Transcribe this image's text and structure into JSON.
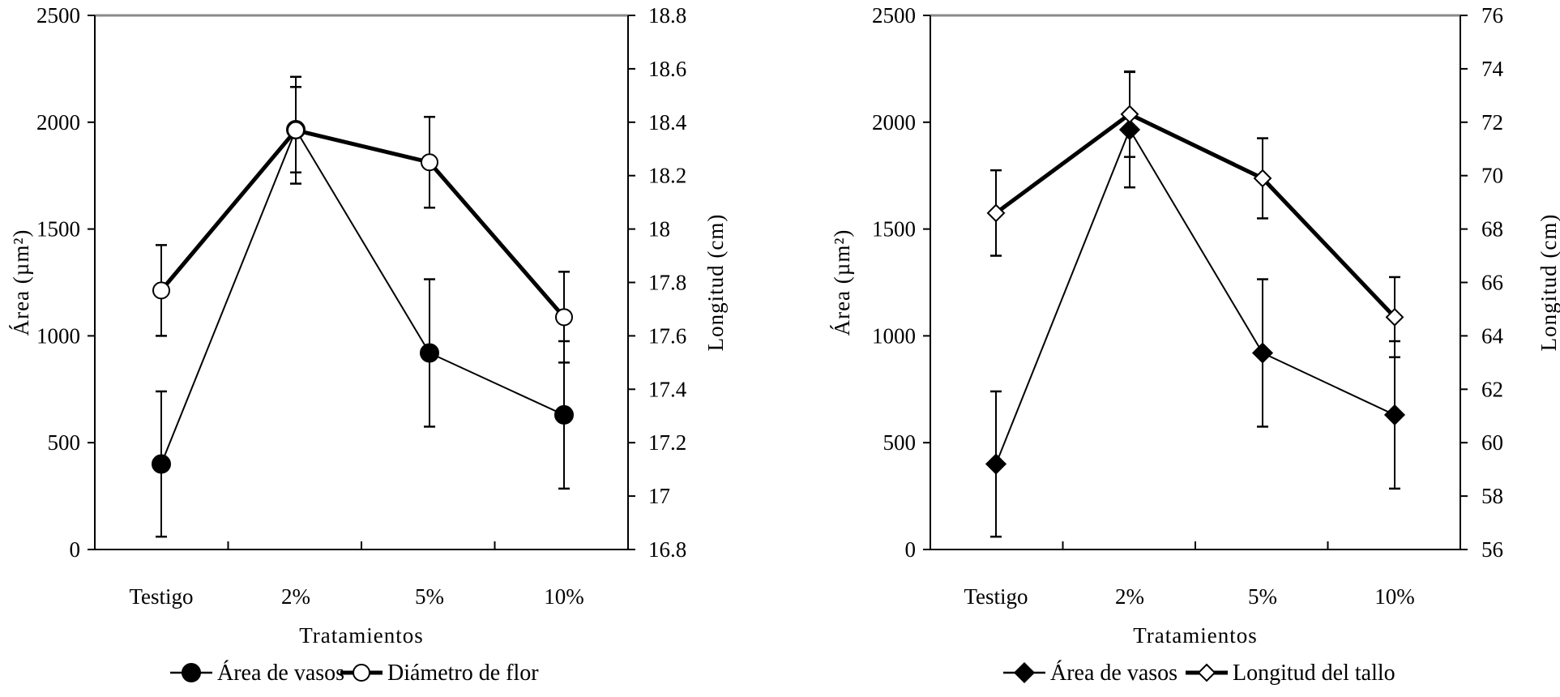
{
  "chart_data": [
    {
      "type": "line",
      "categories": [
        "Testigo",
        "2%",
        "5%",
        "10%"
      ],
      "xlabel": "Tratamientos",
      "ylabel_left": "Área (µm²)",
      "ylabel_right": "Longitud (cm)",
      "ylim_left": [
        0,
        2500
      ],
      "ylim_right": [
        16.8,
        18.8
      ],
      "left_ticks": [
        "0",
        "500",
        "1000",
        "1500",
        "2000",
        "2500"
      ],
      "right_ticks": [
        "16.8",
        "17",
        "17.2",
        "17.4",
        "17.6",
        "17.8",
        "18",
        "18.2",
        "18.4",
        "18.6",
        "18.8"
      ],
      "series": [
        {
          "name": "Área de vasos",
          "axis": "left",
          "marker": "filled-circle",
          "values": [
            400,
            1965,
            920,
            630
          ],
          "errors": [
            340,
            200,
            345,
            345
          ]
        },
        {
          "name": "Diámetro de flor",
          "axis": "right",
          "marker": "open-circle",
          "values": [
            17.77,
            18.37,
            18.25,
            17.67
          ],
          "errors": [
            0.17,
            0.2,
            0.17,
            0.17
          ]
        }
      ],
      "legend": "bottom"
    },
    {
      "type": "line",
      "categories": [
        "Testigo",
        "2%",
        "5%",
        "10%"
      ],
      "xlabel": "Tratamientos",
      "ylabel_left": "Área (µm²)",
      "ylabel_right": "Longitud (cm)",
      "ylim_left": [
        0,
        2500
      ],
      "ylim_right": [
        56,
        76
      ],
      "left_ticks": [
        "0",
        "500",
        "1000",
        "1500",
        "2000",
        "2500"
      ],
      "right_ticks": [
        "56",
        "58",
        "60",
        "62",
        "64",
        "66",
        "68",
        "70",
        "72",
        "74",
        "76"
      ],
      "series": [
        {
          "name": "Área de vasos",
          "axis": "left",
          "marker": "filled-diamond",
          "values": [
            400,
            1965,
            920,
            630
          ],
          "errors": [
            340,
            270,
            345,
            345
          ]
        },
        {
          "name": "Longitud del tallo",
          "axis": "right",
          "marker": "open-diamond",
          "values": [
            68.6,
            72.3,
            69.9,
            64.7
          ],
          "errors": [
            1.6,
            1.6,
            1.5,
            1.5
          ]
        }
      ],
      "legend": "bottom"
    }
  ]
}
